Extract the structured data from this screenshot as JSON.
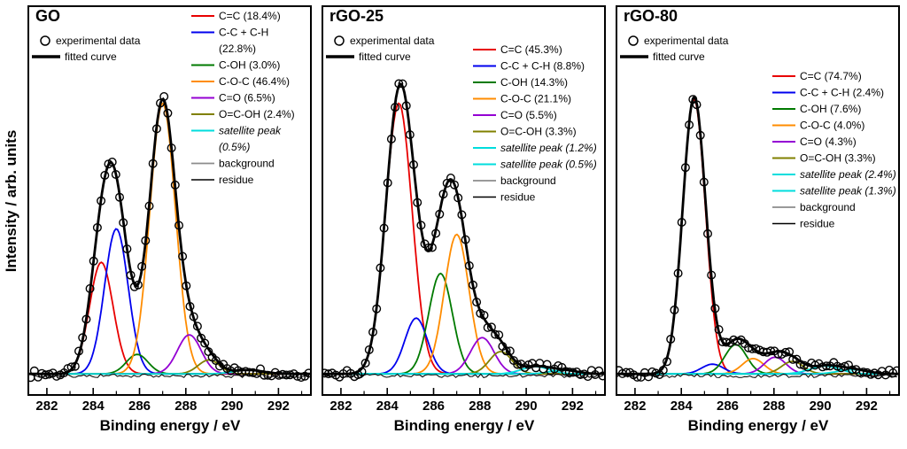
{
  "figure": {
    "xlabel": "Binding energy / eV",
    "ylabel": "Intensity / arb. units"
  },
  "chart_data": [
    {
      "type": "line",
      "title": "GO",
      "xlabel": "Binding energy / eV",
      "ylabel": "Intensity / arb. units",
      "x_range": [
        281.2,
        293.4
      ],
      "x_ticks": [
        282,
        284,
        286,
        288,
        290,
        292
      ],
      "x_minor_ticks": [
        283,
        285,
        287,
        289,
        291,
        293
      ],
      "legend_pos": {
        "x": 190,
        "y": 10
      },
      "baseline": 0.012,
      "series": [
        {
          "role": "experimental",
          "label": "experimental data",
          "color": "#000000"
        },
        {
          "role": "fitted",
          "label": "fitted curve",
          "color": "#000000"
        },
        {
          "role": "peak",
          "label": "C=C (18.4%)",
          "color": "#e80000",
          "center": 284.35,
          "height": 0.4,
          "fwhm": 1.2
        },
        {
          "role": "peak",
          "label": "C-C + C-H",
          "label2": "(22.8%)",
          "color": "#0000ee",
          "center": 285.0,
          "height": 0.52,
          "fwhm": 1.2
        },
        {
          "role": "peak",
          "label": "C-OH (3.0%)",
          "color": "#007a00",
          "center": 285.9,
          "height": 0.07,
          "fwhm": 1.1
        },
        {
          "role": "peak",
          "label": "C-O-C (46.4%)",
          "color": "#ff8c00",
          "center": 287.0,
          "height": 0.97,
          "fwhm": 1.3
        },
        {
          "role": "peak",
          "label": "C=O (6.5%)",
          "color": "#9400d3",
          "center": 288.15,
          "height": 0.14,
          "fwhm": 1.2
        },
        {
          "role": "peak",
          "label": "O=C-OH (2.4%)",
          "color": "#808000",
          "center": 289.0,
          "height": 0.05,
          "fwhm": 1.1
        },
        {
          "role": "peak",
          "label": "satellite peak",
          "label2": "(0.5%)",
          "italic": true,
          "color": "#00dddd",
          "center": 290.7,
          "height": 0.014,
          "fwhm": 1.5
        },
        {
          "role": "background",
          "label": "background",
          "color": "#8c8c8c"
        },
        {
          "role": "residue",
          "label": "residue",
          "color": "#000000"
        }
      ]
    },
    {
      "type": "line",
      "title": "rGO-25",
      "xlabel": "Binding energy / eV",
      "ylabel": "Intensity / arb. units",
      "x_range": [
        281.2,
        293.4
      ],
      "x_ticks": [
        282,
        284,
        286,
        288,
        290,
        292
      ],
      "x_minor_ticks": [
        283,
        285,
        287,
        289,
        291,
        293
      ],
      "legend_pos": {
        "x": 176,
        "y": 48
      },
      "baseline": 0.012,
      "series": [
        {
          "role": "experimental",
          "label": "experimental data",
          "color": "#000000"
        },
        {
          "role": "fitted",
          "label": "fitted curve",
          "color": "#000000"
        },
        {
          "role": "peak",
          "label": "C=C (45.3%)",
          "color": "#e80000",
          "center": 284.5,
          "height": 0.97,
          "fwhm": 1.35
        },
        {
          "role": "peak",
          "label": "C-C + C-H (8.8%)",
          "color": "#0000ee",
          "center": 285.25,
          "height": 0.2,
          "fwhm": 1.15
        },
        {
          "role": "peak",
          "label": "C-OH (14.3%)",
          "color": "#007a00",
          "center": 286.3,
          "height": 0.36,
          "fwhm": 1.2
        },
        {
          "role": "peak",
          "label": "C-O-C (21.1%)",
          "color": "#ff8c00",
          "center": 287.0,
          "height": 0.5,
          "fwhm": 1.25
        },
        {
          "role": "peak",
          "label": "C=O (5.5%)",
          "color": "#9400d3",
          "center": 288.1,
          "height": 0.13,
          "fwhm": 1.2
        },
        {
          "role": "peak",
          "label": "O=C-OH (3.3%)",
          "color": "#808000",
          "center": 288.9,
          "height": 0.08,
          "fwhm": 1.15
        },
        {
          "role": "peak",
          "label": "satellite peak (1.2%)",
          "italic": true,
          "color": "#00dddd",
          "center": 290.4,
          "height": 0.026,
          "fwhm": 1.4
        },
        {
          "role": "peak",
          "label": "satellite peak (0.5%)",
          "italic": true,
          "color": "#00dddd",
          "center": 291.6,
          "height": 0.013,
          "fwhm": 1.4
        },
        {
          "role": "background",
          "label": "background",
          "color": "#8c8c8c"
        },
        {
          "role": "residue",
          "label": "residue",
          "color": "#000000"
        }
      ]
    },
    {
      "type": "line",
      "title": "rGO-80",
      "xlabel": "Binding energy / eV",
      "ylabel": "Intensity / arb. units",
      "x_range": [
        281.2,
        293.4
      ],
      "x_ticks": [
        282,
        284,
        286,
        288,
        290,
        292
      ],
      "x_minor_ticks": [
        283,
        285,
        287,
        289,
        291,
        293
      ],
      "legend_pos": {
        "x": 182,
        "y": 78
      },
      "baseline": 0.012,
      "series": [
        {
          "role": "experimental",
          "label": "experimental data",
          "color": "#000000"
        },
        {
          "role": "fitted",
          "label": "fitted curve",
          "color": "#000000"
        },
        {
          "role": "peak",
          "label": "C=C (74.7%)",
          "color": "#e80000",
          "center": 284.55,
          "height": 0.985,
          "fwhm": 1.15
        },
        {
          "role": "peak",
          "label": "C-C + C-H (2.4%)",
          "color": "#0000ee",
          "center": 285.35,
          "height": 0.035,
          "fwhm": 1.1
        },
        {
          "role": "peak",
          "label": "C-OH (7.6%)",
          "color": "#007a00",
          "center": 286.35,
          "height": 0.105,
          "fwhm": 1.1
        },
        {
          "role": "peak",
          "label": "C-O-C (4.0%)",
          "color": "#ff8c00",
          "center": 287.1,
          "height": 0.055,
          "fwhm": 1.1
        },
        {
          "role": "peak",
          "label": "C=O (4.3%)",
          "color": "#9400d3",
          "center": 288.05,
          "height": 0.06,
          "fwhm": 1.1
        },
        {
          "role": "peak",
          "label": "O=C-OH (3.3%)",
          "color": "#808000",
          "center": 288.8,
          "height": 0.045,
          "fwhm": 1.1
        },
        {
          "role": "peak",
          "label": "satellite peak (2.4%)",
          "italic": true,
          "color": "#00dddd",
          "center": 290.2,
          "height": 0.028,
          "fwhm": 1.5
        },
        {
          "role": "peak",
          "label": "satellite peak (1.3%)",
          "italic": true,
          "color": "#00dddd",
          "center": 291.4,
          "height": 0.015,
          "fwhm": 1.5
        },
        {
          "role": "background",
          "label": "background",
          "color": "#8c8c8c"
        },
        {
          "role": "residue",
          "label": "residue",
          "color": "#000000"
        }
      ]
    }
  ]
}
